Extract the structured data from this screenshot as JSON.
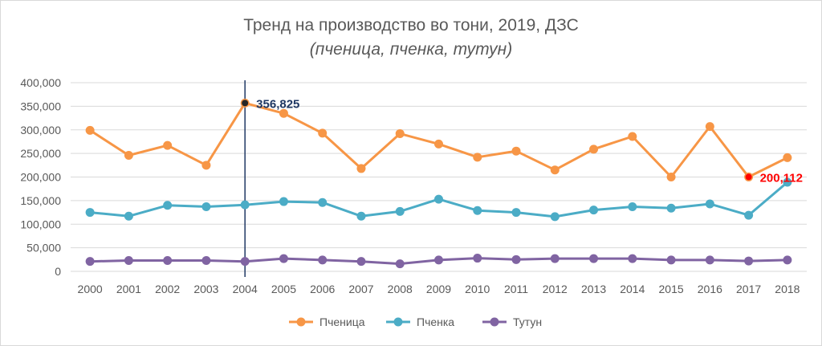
{
  "chart_data": {
    "type": "line",
    "title": "Тренд на производство  во тони, 2019, ДЗС",
    "subtitle": "(пченица, пченка, тутун)",
    "x": [
      "2000",
      "2001",
      "2002",
      "2003",
      "2004",
      "2005",
      "2006",
      "2007",
      "2008",
      "2009",
      "2010",
      "2011",
      "2012",
      "2013",
      "2014",
      "2015",
      "2016",
      "2017",
      "2018"
    ],
    "ylim": [
      0,
      400000
    ],
    "yticks": [
      0,
      50000,
      100000,
      150000,
      200000,
      250000,
      300000,
      350000,
      400000
    ],
    "ytick_labels": [
      "0",
      "50,000",
      "100,000",
      "150,000",
      "200,000",
      "250,000",
      "300,000",
      "350,000",
      "400,000"
    ],
    "grid": true,
    "legend_position": "bottom",
    "series": [
      {
        "name": "Пченица",
        "color": "#F79646",
        "values": [
          299000,
          246000,
          267000,
          225000,
          356825,
          335000,
          293000,
          218000,
          292000,
          270000,
          242000,
          255000,
          215000,
          259000,
          286000,
          200000,
          307000,
          200112,
          241000
        ]
      },
      {
        "name": "Пченка",
        "color": "#4BACC6",
        "values": [
          125000,
          117000,
          140000,
          137000,
          141000,
          148000,
          146000,
          117000,
          127000,
          153000,
          129000,
          125000,
          116000,
          130000,
          137000,
          134000,
          143000,
          119000,
          189000
        ]
      },
      {
        "name": "Тутун",
        "color": "#8064A2",
        "values": [
          21000,
          23000,
          23000,
          23000,
          21000,
          27000,
          24000,
          21000,
          16000,
          24000,
          28000,
          25000,
          27000,
          27000,
          27000,
          24000,
          24000,
          22000,
          24000
        ]
      }
    ],
    "annotations": [
      {
        "series": 0,
        "index": 4,
        "label": "356,825",
        "color": "#1F3864",
        "marker": "#262626",
        "vline": true
      },
      {
        "series": 0,
        "index": 17,
        "label": "200,112",
        "color": "#FF0000",
        "marker": "#FF0000",
        "vline": false
      }
    ]
  }
}
